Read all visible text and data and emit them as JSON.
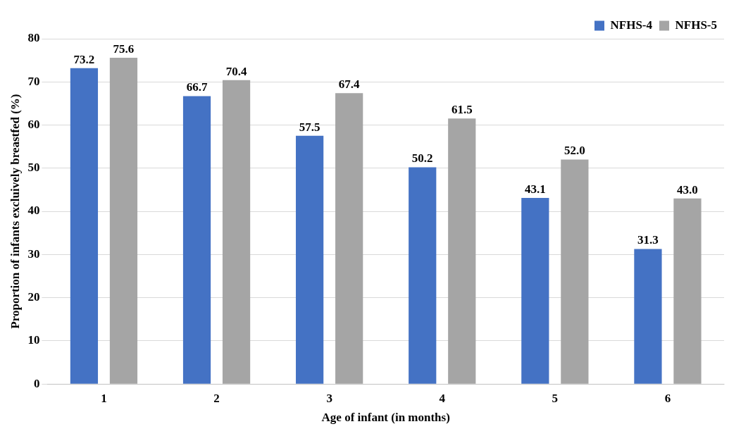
{
  "chart_data": {
    "type": "bar",
    "xlabel": "Age of infant (in months)",
    "ylabel": "Proportion of infants excluively breastfed (%)",
    "categories": [
      "1",
      "2",
      "3",
      "4",
      "5",
      "6"
    ],
    "series": [
      {
        "name": "NFHS-4",
        "color": "#4472c4",
        "values": [
          73.2,
          66.7,
          57.5,
          50.2,
          43.1,
          31.3
        ],
        "value_labels": [
          "73.2",
          "66.7",
          "57.5",
          "50.2",
          "43.1",
          "31.3"
        ]
      },
      {
        "name": "NFHS-5",
        "color": "#a5a5a5",
        "values": [
          75.6,
          70.4,
          67.4,
          61.5,
          52.0,
          43.0
        ],
        "value_labels": [
          "75.6",
          "70.4",
          "67.4",
          "61.5",
          "52.0",
          "43.0"
        ]
      }
    ],
    "ylim": [
      0,
      80
    ],
    "yticks": [
      0,
      10,
      20,
      30,
      40,
      50,
      60,
      70,
      80
    ],
    "grid": "y",
    "legend": "top right"
  }
}
